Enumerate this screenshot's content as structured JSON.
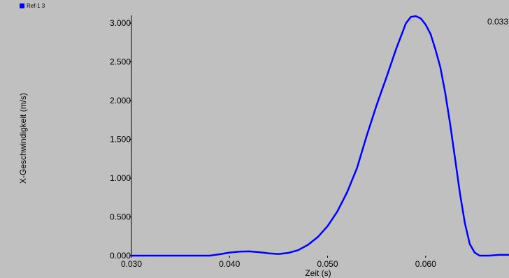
{
  "legend": {
    "label": "Ref-1 3",
    "color": "#0000ff"
  },
  "corner_value": "0.033",
  "chart_data": {
    "type": "line",
    "title": "",
    "xlabel": "Zeit (s)",
    "ylabel": "X-Geschwindigkeit (m/s)",
    "xlim": [
      0.03,
      0.0685
    ],
    "ylim": [
      0.0,
      3.1
    ],
    "x_ticks": [
      {
        "value": 0.03,
        "label": "0.030"
      },
      {
        "value": 0.04,
        "label": "0.040"
      },
      {
        "value": 0.05,
        "label": "0.050"
      },
      {
        "value": 0.06,
        "label": "0.060"
      }
    ],
    "y_ticks": [
      {
        "value": 0.0,
        "label": "0.000"
      },
      {
        "value": 0.5,
        "label": "0.500"
      },
      {
        "value": 1.0,
        "label": "1.000"
      },
      {
        "value": 1.5,
        "label": "1.500"
      },
      {
        "value": 2.0,
        "label": "2.000"
      },
      {
        "value": 2.5,
        "label": "2.500"
      },
      {
        "value": 3.0,
        "label": "3.000"
      }
    ],
    "grid": false,
    "series": [
      {
        "name": "Ref-1 3",
        "color": "#0000ff",
        "x": [
          0.03,
          0.032,
          0.034,
          0.036,
          0.038,
          0.039,
          0.04,
          0.041,
          0.042,
          0.043,
          0.044,
          0.045,
          0.046,
          0.047,
          0.048,
          0.049,
          0.05,
          0.051,
          0.052,
          0.053,
          0.054,
          0.055,
          0.056,
          0.057,
          0.058,
          0.0585,
          0.059,
          0.0595,
          0.06,
          0.0605,
          0.061,
          0.0615,
          0.062,
          0.0625,
          0.063,
          0.0635,
          0.064,
          0.0645,
          0.065,
          0.0655,
          0.066,
          0.0665,
          0.067,
          0.0675,
          0.068,
          0.0685
        ],
        "values": [
          0.0,
          0.0,
          0.0,
          0.0,
          0.0,
          0.018,
          0.04,
          0.052,
          0.055,
          0.045,
          0.03,
          0.022,
          0.035,
          0.07,
          0.14,
          0.24,
          0.38,
          0.57,
          0.82,
          1.13,
          1.55,
          1.94,
          2.3,
          2.67,
          3.0,
          3.08,
          3.09,
          3.06,
          2.98,
          2.86,
          2.66,
          2.43,
          2.1,
          1.7,
          1.25,
          0.8,
          0.42,
          0.15,
          0.04,
          0.0,
          0.0,
          0.0,
          0.005,
          0.01,
          0.01,
          0.01
        ]
      }
    ]
  }
}
